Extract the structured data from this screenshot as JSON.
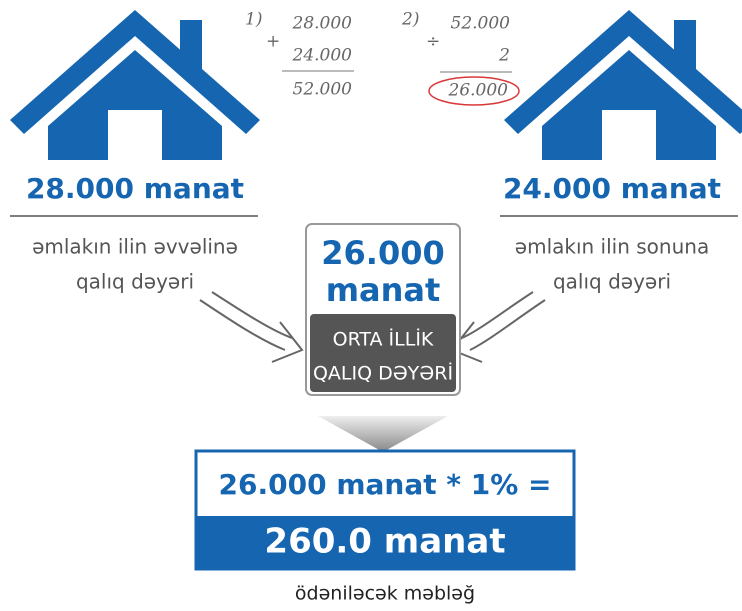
{
  "left": {
    "amount": "28.000 manat",
    "caption": [
      "əmlakın ilin əvvəlinə",
      "qalıq dəyəri"
    ]
  },
  "right": {
    "amount": "24.000 manat",
    "caption": [
      "əmlakın ilin sonuna",
      "qalıq dəyəri"
    ]
  },
  "calculations": [
    {
      "label": "1)",
      "operator": "+",
      "operands": [
        "28.000",
        "24.000"
      ],
      "result": "52.000"
    },
    {
      "label": "2)",
      "operator": "÷",
      "operands": [
        "52.000",
        "2"
      ],
      "result": "26.000"
    }
  ],
  "average": {
    "amount": [
      "26.000",
      "manat"
    ],
    "label": [
      "ORTA İLLİK",
      "QALIQ DƏYƏRİ"
    ]
  },
  "result": {
    "formula": "26.000 manat * 1% =",
    "value": "260.0 manat",
    "caption": "ödəniləcək məbləğ"
  }
}
